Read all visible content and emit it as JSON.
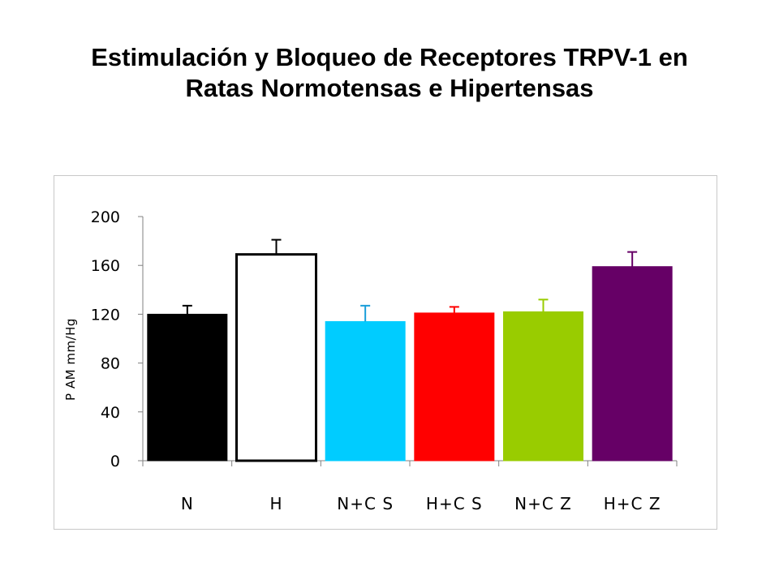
{
  "slide": {
    "title_line1": "Estimulación y Bloqueo de Receptores TRPV-1 en",
    "title_line2": "Ratas Normotensas e Hipertensas"
  },
  "chart_data": {
    "type": "bar",
    "title": "",
    "xlabel": "",
    "ylabel": "P AM mm/Hg",
    "ylim": [
      0,
      200
    ],
    "yticks": [
      0,
      40,
      80,
      120,
      160,
      200
    ],
    "categories": [
      "N",
      "H",
      "N+C S",
      "H+C S",
      "N+C Z",
      "H+C Z"
    ],
    "series": [
      {
        "values": [
          120,
          169,
          114,
          121,
          122,
          159
        ],
        "errors": [
          7,
          12,
          13,
          5,
          10,
          12
        ],
        "colors": [
          "#000000",
          "#ffffff",
          "#00ccff",
          "#ff0000",
          "#99cc00",
          "#660066"
        ],
        "error_colors": [
          "#000000",
          "#000000",
          "#1a9ed9",
          "#ff0000",
          "#99cc00",
          "#660066"
        ]
      }
    ],
    "grid": false,
    "legend": "none"
  }
}
